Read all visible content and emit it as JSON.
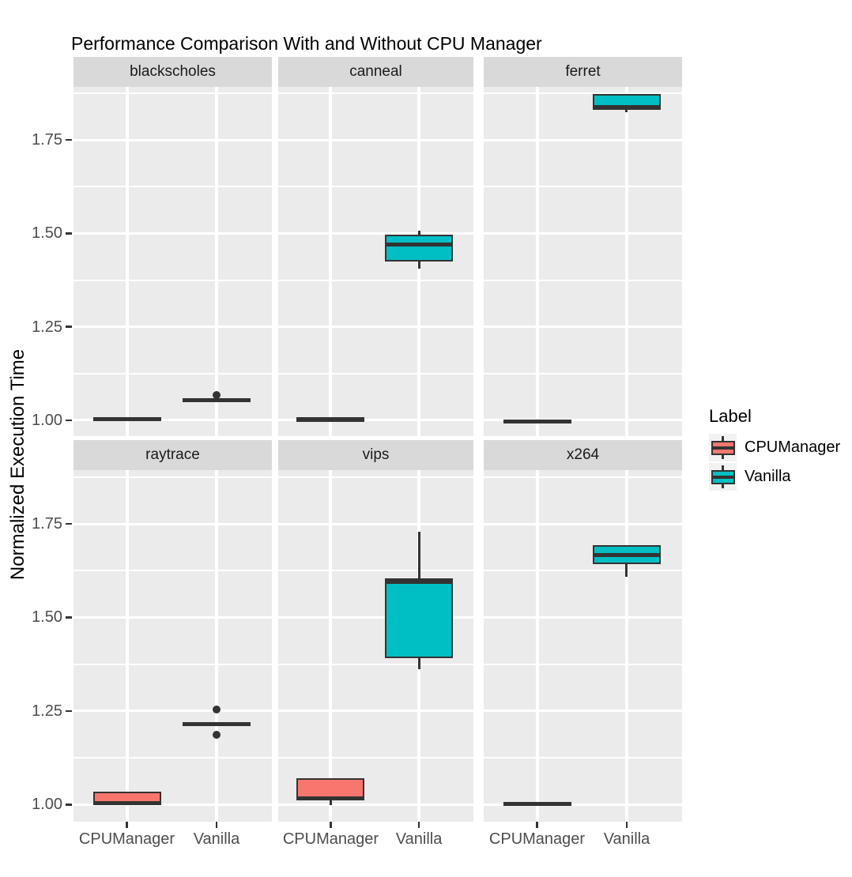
{
  "chart_data": {
    "type": "boxplot",
    "title": "Performance Comparison With and Without CPU Manager",
    "xlabel": "",
    "ylabel": "Normalized Execution Time",
    "categories": [
      "CPUManager",
      "Vanilla"
    ],
    "y_ticks": [
      1.0,
      1.25,
      1.5,
      1.75
    ],
    "y_tick_labels": [
      "1.00",
      "1.25",
      "1.50",
      "1.75"
    ],
    "y_minor_gridlines": [
      1.125,
      1.375,
      1.625,
      1.875
    ],
    "ylim": [
      0.955,
      1.893
    ],
    "grid": true,
    "facet_layout": [
      "blackscholes",
      "canneal",
      "ferret",
      "raytrace",
      "vips",
      "x264"
    ],
    "legend": {
      "title": "Label",
      "position": "right",
      "entries": [
        {
          "label": "CPUManager",
          "color": "#F8766D"
        },
        {
          "label": "Vanilla",
          "color": "#00BFC4"
        }
      ]
    },
    "facets": [
      {
        "name": "blackscholes",
        "boxes": [
          {
            "group": "CPUManager",
            "min": 1.001,
            "q1": 1.001,
            "median": 1.004,
            "q3": 1.007,
            "max": 1.007,
            "outliers": []
          },
          {
            "group": "Vanilla",
            "min": 1.0515,
            "q1": 1.0515,
            "median": 1.054,
            "q3": 1.057,
            "max": 1.057,
            "outliers": [
              1.068
            ]
          }
        ]
      },
      {
        "name": "canneal",
        "boxes": [
          {
            "group": "CPUManager",
            "min": 0.9985,
            "q1": 0.9985,
            "median": 1.0015,
            "q3": 1.008,
            "max": 1.008,
            "outliers": []
          },
          {
            "group": "Vanilla",
            "min": 1.405,
            "q1": 1.424,
            "median": 1.471,
            "q3": 1.496,
            "max": 1.5075,
            "outliers": []
          }
        ]
      },
      {
        "name": "ferret",
        "boxes": [
          {
            "group": "CPUManager",
            "min": 0.993,
            "q1": 0.993,
            "median": 0.9965,
            "q3": 0.9995,
            "max": 0.9995,
            "outliers": []
          },
          {
            "group": "Vanilla",
            "min": 1.8235,
            "q1": 1.8315,
            "median": 1.8375,
            "q3": 1.8725,
            "max": 1.8735,
            "outliers": []
          }
        ]
      },
      {
        "name": "raytrace",
        "boxes": [
          {
            "group": "CPUManager",
            "min": 0.9995,
            "q1": 1.0,
            "median": 1.0045,
            "q3": 1.0345,
            "max": 1.0355,
            "outliers": []
          },
          {
            "group": "Vanilla",
            "min": 1.2115,
            "q1": 1.2115,
            "median": 1.2155,
            "q3": 1.2195,
            "max": 1.2195,
            "outliers": [
              1.2535,
              1.1865
            ]
          }
        ]
      },
      {
        "name": "vips",
        "boxes": [
          {
            "group": "CPUManager",
            "min": 0.9995,
            "q1": 1.0122,
            "median": 1.016,
            "q3": 1.071,
            "max": 1.071,
            "outliers": []
          },
          {
            "group": "Vanilla",
            "min": 1.3622,
            "q1": 1.3918,
            "median": 1.5959,
            "q3": 1.6054,
            "max": 1.7283,
            "outliers": []
          }
        ]
      },
      {
        "name": "x264",
        "boxes": [
          {
            "group": "CPUManager",
            "min": 0.9985,
            "q1": 0.9985,
            "median": 1.002,
            "q3": 1.0055,
            "max": 1.0055,
            "outliers": []
          },
          {
            "group": "Vanilla",
            "min": 1.6085,
            "q1": 1.6415,
            "median": 1.6665,
            "q3": 1.693,
            "max": 1.6935,
            "outliers": []
          }
        ]
      }
    ],
    "colors": {
      "cpumanager": "#F8766D",
      "vanilla": "#00BFC4",
      "box_border": "#333333",
      "panel_bg": "#EBEBEB",
      "strip_bg": "#D9D9D9",
      "gridline": "#FFFFFF",
      "axis_text": "#4D4D4D",
      "legend_key_bg": "#F2F2F2"
    }
  }
}
